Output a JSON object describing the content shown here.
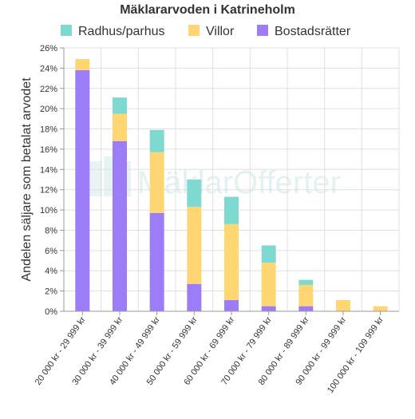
{
  "chart_data": {
    "type": "bar",
    "stacked": true,
    "title": "Mäklararvoden i Katrineholm",
    "ylabel": "Andelen säljare som betalat arvodet",
    "xlabel": "",
    "ylim": [
      0,
      26
    ],
    "y_tick_step": 2,
    "y_tick_suffix": "%",
    "grid": true,
    "legend_position": "top",
    "watermark": "MäklarOfferter",
    "categories": [
      "20 000 kr - 29 999 kr",
      "30 000 kr - 39 999 kr",
      "40 000 kr - 49 999 kr",
      "50 000 kr - 59 999 kr",
      "60 000 kr - 69 999 kr",
      "70 000 kr - 79 999 kr",
      "80 000 kr - 89 999 kr",
      "90 000 kr - 99 999 kr",
      "100 000 kr - 109 999 kr"
    ],
    "series": [
      {
        "name": "Bostadsrätter",
        "color": "#9d7cf7",
        "values": [
          23.8,
          16.8,
          9.7,
          2.7,
          1.1,
          0.5,
          0.5,
          0,
          0
        ]
      },
      {
        "name": "Villor",
        "color": "#ffd672",
        "values": [
          1.1,
          2.7,
          6.0,
          7.6,
          7.5,
          4.3,
          2.1,
          1.1,
          0.5
        ]
      },
      {
        "name": "Radhus/parhus",
        "color": "#7ed9d0",
        "values": [
          0,
          1.6,
          2.2,
          2.7,
          2.7,
          1.7,
          0.5,
          0,
          0
        ]
      }
    ],
    "legend_order": [
      "Radhus/parhus",
      "Villor",
      "Bostadsrätter"
    ]
  }
}
